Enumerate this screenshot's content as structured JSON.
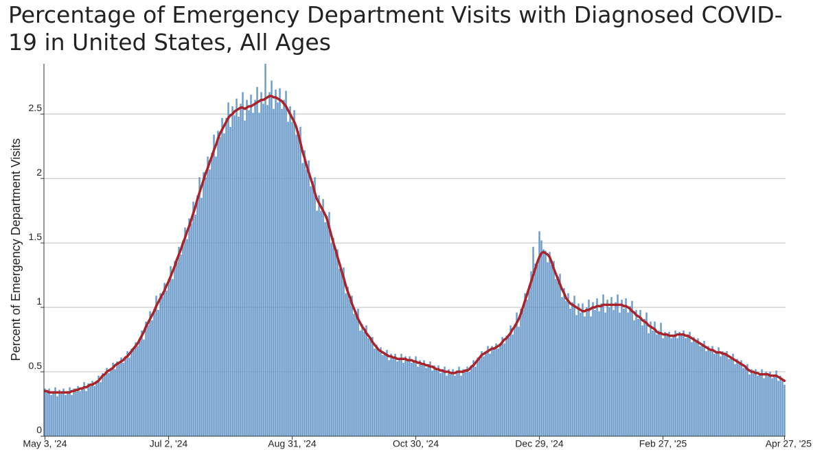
{
  "chart_data": {
    "type": "bar",
    "title": "Percentage of Emergency Department Visits with Diagnosed COVID-19 in United States, All Ages",
    "y_label": "Percent of Emergency Department Visits",
    "ylim": [
      0,
      2.89
    ],
    "yticks": [
      0,
      0.5,
      1,
      1.5,
      2,
      2.5
    ],
    "grid": true,
    "categories": [
      "May 3, '24",
      null,
      null,
      null,
      null,
      null,
      null,
      null,
      null,
      null,
      null,
      null,
      null,
      null,
      null,
      null,
      null,
      null,
      null,
      null,
      null,
      null,
      null,
      null,
      null,
      null,
      null,
      null,
      null,
      null,
      null,
      null,
      null,
      null,
      null,
      null,
      null,
      null,
      null,
      null,
      null,
      null,
      null,
      null,
      null,
      null,
      null,
      null,
      null,
      null,
      null,
      null,
      null,
      null,
      null,
      null,
      null,
      null,
      null,
      null,
      "Jul 2, '24",
      null,
      null,
      null,
      null,
      null,
      null,
      null,
      null,
      null,
      null,
      null,
      null,
      null,
      null,
      null,
      null,
      null,
      null,
      null,
      null,
      null,
      null,
      null,
      null,
      null,
      null,
      null,
      null,
      null,
      null,
      null,
      null,
      null,
      null,
      null,
      null,
      null,
      null,
      null,
      null,
      null,
      null,
      null,
      null,
      null,
      null,
      null,
      null,
      null,
      null,
      null,
      null,
      null,
      null,
      null,
      null,
      null,
      null,
      null,
      "Aug 31, '24",
      null,
      null,
      null,
      null,
      null,
      null,
      null,
      null,
      null,
      null,
      null,
      null,
      null,
      null,
      null,
      null,
      null,
      null,
      null,
      null,
      null,
      null,
      null,
      null,
      null,
      null,
      null,
      null,
      null,
      null,
      null,
      null,
      null,
      null,
      null,
      null,
      null,
      null,
      null,
      null,
      null,
      null,
      null,
      null,
      null,
      null,
      null,
      null,
      null,
      null,
      null,
      null,
      null,
      null,
      null,
      null,
      null,
      null,
      null,
      "Oct 30, '24",
      null,
      null,
      null,
      null,
      null,
      null,
      null,
      null,
      null,
      null,
      null,
      null,
      null,
      null,
      null,
      null,
      null,
      null,
      null,
      null,
      null,
      null,
      null,
      null,
      null,
      null,
      null,
      null,
      null,
      null,
      null,
      null,
      null,
      null,
      null,
      null,
      null,
      null,
      null,
      null,
      null,
      null,
      null,
      null,
      null,
      null,
      null,
      null,
      null,
      null,
      null,
      null,
      null,
      null,
      null,
      null,
      null,
      null,
      null,
      "Dec 29, '24",
      null,
      null,
      null,
      null,
      null,
      null,
      null,
      null,
      null,
      null,
      null,
      null,
      null,
      null,
      null,
      null,
      null,
      null,
      null,
      null,
      null,
      null,
      null,
      null,
      null,
      null,
      null,
      null,
      null,
      null,
      null,
      null,
      null,
      null,
      null,
      null,
      null,
      null,
      null,
      null,
      null,
      null,
      null,
      null,
      null,
      null,
      null,
      null,
      null,
      null,
      null,
      null,
      null,
      null,
      null,
      null,
      null,
      null,
      null,
      "Feb 27, '25",
      null,
      null,
      null,
      null,
      null,
      null,
      null,
      null,
      null,
      null,
      null,
      null,
      null,
      null,
      null,
      null,
      null,
      null,
      null,
      null,
      null,
      null,
      null,
      null,
      null,
      null,
      null,
      null,
      null,
      null,
      null,
      null,
      null,
      null,
      null,
      null,
      null,
      null,
      null,
      null,
      null,
      null,
      null,
      null,
      null,
      null,
      null,
      null,
      null,
      null,
      null,
      null,
      null,
      null,
      null,
      null,
      null,
      null,
      "Apr 27, '25"
    ],
    "series": [
      {
        "type": "bar",
        "color": "#6b9bc9",
        "values": [
          0.37,
          0.34,
          0.37,
          0.32,
          0.35,
          0.38,
          0.31,
          0.36,
          0.33,
          0.37,
          0.32,
          0.35,
          0.38,
          0.32,
          0.37,
          0.35,
          0.39,
          0.35,
          0.38,
          0.42,
          0.35,
          0.41,
          0.39,
          0.43,
          0.39,
          0.43,
          0.47,
          0.42,
          0.49,
          0.47,
          0.53,
          0.49,
          0.53,
          0.57,
          0.52,
          0.58,
          0.56,
          0.61,
          0.57,
          0.62,
          0.66,
          0.61,
          0.68,
          0.67,
          0.73,
          0.7,
          0.76,
          0.82,
          0.75,
          0.89,
          0.86,
          0.97,
          0.9,
          0.99,
          1.09,
          0.98,
          1.11,
          1.08,
          1.19,
          1.13,
          1.22,
          1.32,
          1.22,
          1.36,
          1.35,
          1.47,
          1.41,
          1.52,
          1.62,
          1.53,
          1.69,
          1.65,
          1.82,
          1.72,
          1.87,
          2.01,
          1.85,
          2.05,
          2.01,
          2.17,
          2.07,
          2.2,
          2.34,
          2.17,
          2.37,
          2.32,
          2.47,
          2.35,
          2.47,
          2.59,
          2.4,
          2.56,
          2.49,
          2.62,
          2.48,
          2.58,
          2.67,
          2.45,
          2.61,
          2.53,
          2.65,
          2.51,
          2.61,
          2.71,
          2.51,
          2.67,
          2.58,
          2.89,
          2.57,
          2.67,
          2.76,
          2.54,
          2.69,
          2.59,
          2.7,
          2.54,
          2.61,
          2.68,
          2.44,
          2.56,
          2.44,
          2.53,
          2.34,
          2.37,
          2.4,
          2.12,
          2.22,
          2.07,
          2.14,
          1.94,
          1.98,
          2.01,
          1.75,
          1.87,
          1.75,
          1.84,
          1.66,
          1.71,
          1.74,
          1.5,
          1.54,
          1.43,
          1.45,
          1.3,
          1.3,
          1.31,
          1.11,
          1.16,
          1.06,
          1.09,
          0.95,
          0.97,
          0.99,
          0.82,
          0.87,
          0.81,
          0.86,
          0.76,
          0.77,
          0.77,
          0.68,
          0.71,
          0.66,
          0.69,
          0.63,
          0.65,
          0.67,
          0.59,
          0.64,
          0.6,
          0.64,
          0.58,
          0.61,
          0.64,
          0.57,
          0.62,
          0.58,
          0.62,
          0.57,
          0.59,
          0.62,
          0.54,
          0.59,
          0.55,
          0.59,
          0.53,
          0.56,
          0.58,
          0.51,
          0.55,
          0.51,
          0.55,
          0.49,
          0.52,
          0.54,
          0.47,
          0.52,
          0.48,
          0.52,
          0.47,
          0.51,
          0.54,
          0.47,
          0.52,
          0.5,
          0.54,
          0.5,
          0.55,
          0.59,
          0.54,
          0.61,
          0.6,
          0.66,
          0.62,
          0.66,
          0.7,
          0.64,
          0.7,
          0.67,
          0.72,
          0.68,
          0.72,
          0.77,
          0.72,
          0.78,
          0.77,
          0.86,
          0.79,
          0.87,
          0.96,
          0.85,
          0.99,
          0.98,
          1.11,
          1.06,
          1.17,
          1.28,
          1.47,
          1.34,
          1.33,
          1.59,
          1.52,
          1.45,
          1.44,
          1.35,
          1.43,
          1.33,
          1.36,
          1.22,
          1.24,
          1.26,
          1.08,
          1.15,
          1.05,
          1.11,
          0.99,
          1.04,
          1.09,
          0.94,
          1.03,
          0.96,
          1.03,
          0.93,
          1.0,
          1.06,
          0.93,
          1.04,
          0.98,
          1.07,
          0.97,
          1.03,
          1.1,
          0.96,
          1.06,
          1.0,
          1.08,
          0.98,
          1.04,
          1.1,
          0.96,
          1.06,
          0.99,
          1.07,
          0.96,
          1.01,
          1.05,
          0.9,
          0.98,
          0.91,
          0.98,
          0.86,
          0.91,
          0.96,
          0.8,
          0.89,
          0.82,
          0.89,
          0.79,
          0.82,
          0.88,
          0.76,
          0.81,
          0.78,
          0.81,
          0.76,
          0.79,
          0.82,
          0.76,
          0.81,
          0.78,
          0.82,
          0.76,
          0.79,
          0.81,
          0.73,
          0.77,
          0.73,
          0.76,
          0.7,
          0.72,
          0.74,
          0.66,
          0.7,
          0.66,
          0.7,
          0.64,
          0.66,
          0.69,
          0.62,
          0.66,
          0.63,
          0.66,
          0.6,
          0.62,
          0.64,
          0.56,
          0.6,
          0.56,
          0.59,
          0.53,
          0.55,
          0.56,
          0.48,
          0.52,
          0.49,
          0.52,
          0.47,
          0.49,
          0.52,
          0.45,
          0.5,
          0.47,
          0.5,
          0.45,
          0.48,
          0.51,
          0.43,
          0.47,
          0.43,
          0.4
        ]
      },
      {
        "type": "line",
        "color": "#a8232a",
        "values": [
          0.35,
          0.35,
          0.34,
          0.34,
          0.34,
          0.34,
          0.34,
          0.34,
          0.34,
          0.34,
          0.34,
          0.34,
          0.34,
          0.35,
          0.35,
          0.36,
          0.36,
          0.37,
          0.37,
          0.38,
          0.38,
          0.39,
          0.4,
          0.4,
          0.41,
          0.42,
          0.43,
          0.45,
          0.47,
          0.48,
          0.5,
          0.51,
          0.52,
          0.53,
          0.55,
          0.56,
          0.57,
          0.58,
          0.59,
          0.61,
          0.62,
          0.64,
          0.66,
          0.68,
          0.7,
          0.72,
          0.75,
          0.78,
          0.81,
          0.85,
          0.88,
          0.91,
          0.94,
          0.97,
          1.01,
          1.04,
          1.07,
          1.1,
          1.13,
          1.17,
          1.2,
          1.24,
          1.28,
          1.32,
          1.37,
          1.41,
          1.45,
          1.5,
          1.54,
          1.59,
          1.63,
          1.68,
          1.73,
          1.78,
          1.84,
          1.89,
          1.94,
          1.99,
          2.04,
          2.08,
          2.13,
          2.17,
          2.22,
          2.26,
          2.31,
          2.35,
          2.38,
          2.41,
          2.44,
          2.47,
          2.49,
          2.5,
          2.52,
          2.53,
          2.54,
          2.55,
          2.55,
          2.54,
          2.55,
          2.56,
          2.56,
          2.57,
          2.58,
          2.59,
          2.6,
          2.61,
          2.61,
          2.62,
          2.63,
          2.64,
          2.64,
          2.63,
          2.63,
          2.62,
          2.61,
          2.6,
          2.58,
          2.56,
          2.53,
          2.5,
          2.47,
          2.44,
          2.4,
          2.34,
          2.28,
          2.21,
          2.16,
          2.1,
          2.05,
          2.0,
          1.95,
          1.89,
          1.84,
          1.81,
          1.78,
          1.75,
          1.72,
          1.68,
          1.62,
          1.56,
          1.5,
          1.45,
          1.39,
          1.34,
          1.28,
          1.23,
          1.17,
          1.12,
          1.08,
          1.03,
          0.99,
          0.95,
          0.91,
          0.88,
          0.85,
          0.83,
          0.8,
          0.78,
          0.76,
          0.73,
          0.71,
          0.69,
          0.67,
          0.66,
          0.65,
          0.64,
          0.63,
          0.62,
          0.62,
          0.61,
          0.61,
          0.6,
          0.6,
          0.6,
          0.6,
          0.6,
          0.59,
          0.59,
          0.59,
          0.58,
          0.58,
          0.57,
          0.57,
          0.56,
          0.56,
          0.55,
          0.55,
          0.54,
          0.54,
          0.53,
          0.52,
          0.52,
          0.51,
          0.51,
          0.5,
          0.5,
          0.5,
          0.49,
          0.49,
          0.49,
          0.5,
          0.5,
          0.5,
          0.5,
          0.51,
          0.51,
          0.52,
          0.54,
          0.55,
          0.57,
          0.59,
          0.61,
          0.63,
          0.64,
          0.65,
          0.66,
          0.67,
          0.68,
          0.68,
          0.69,
          0.7,
          0.71,
          0.73,
          0.75,
          0.76,
          0.78,
          0.8,
          0.83,
          0.85,
          0.88,
          0.91,
          0.95,
          1.0,
          1.05,
          1.1,
          1.15,
          1.2,
          1.25,
          1.3,
          1.35,
          1.39,
          1.42,
          1.43,
          1.42,
          1.41,
          1.39,
          1.35,
          1.3,
          1.26,
          1.22,
          1.18,
          1.14,
          1.11,
          1.07,
          1.05,
          1.03,
          1.02,
          1.01,
          1.0,
          0.99,
          0.98,
          0.97,
          0.97,
          0.98,
          0.98,
          0.99,
          1.0,
          1.0,
          1.01,
          1.01,
          1.01,
          1.02,
          1.02,
          1.02,
          1.02,
          1.02,
          1.02,
          1.02,
          1.02,
          1.02,
          1.02,
          1.01,
          1.01,
          1.0,
          0.99,
          0.97,
          0.96,
          0.94,
          0.93,
          0.92,
          0.9,
          0.89,
          0.88,
          0.86,
          0.85,
          0.84,
          0.83,
          0.81,
          0.8,
          0.8,
          0.79,
          0.79,
          0.79,
          0.78,
          0.78,
          0.78,
          0.78,
          0.79,
          0.79,
          0.79,
          0.79,
          0.78,
          0.78,
          0.77,
          0.76,
          0.75,
          0.74,
          0.73,
          0.72,
          0.71,
          0.7,
          0.69,
          0.68,
          0.67,
          0.67,
          0.66,
          0.65,
          0.65,
          0.65,
          0.64,
          0.64,
          0.63,
          0.62,
          0.61,
          0.6,
          0.59,
          0.58,
          0.57,
          0.56,
          0.55,
          0.54,
          0.52,
          0.51,
          0.5,
          0.5,
          0.49,
          0.49,
          0.48,
          0.48,
          0.48,
          0.48,
          0.48,
          0.47,
          0.47,
          0.47,
          0.47,
          0.46,
          0.45,
          0.44,
          0.43
        ]
      }
    ]
  }
}
